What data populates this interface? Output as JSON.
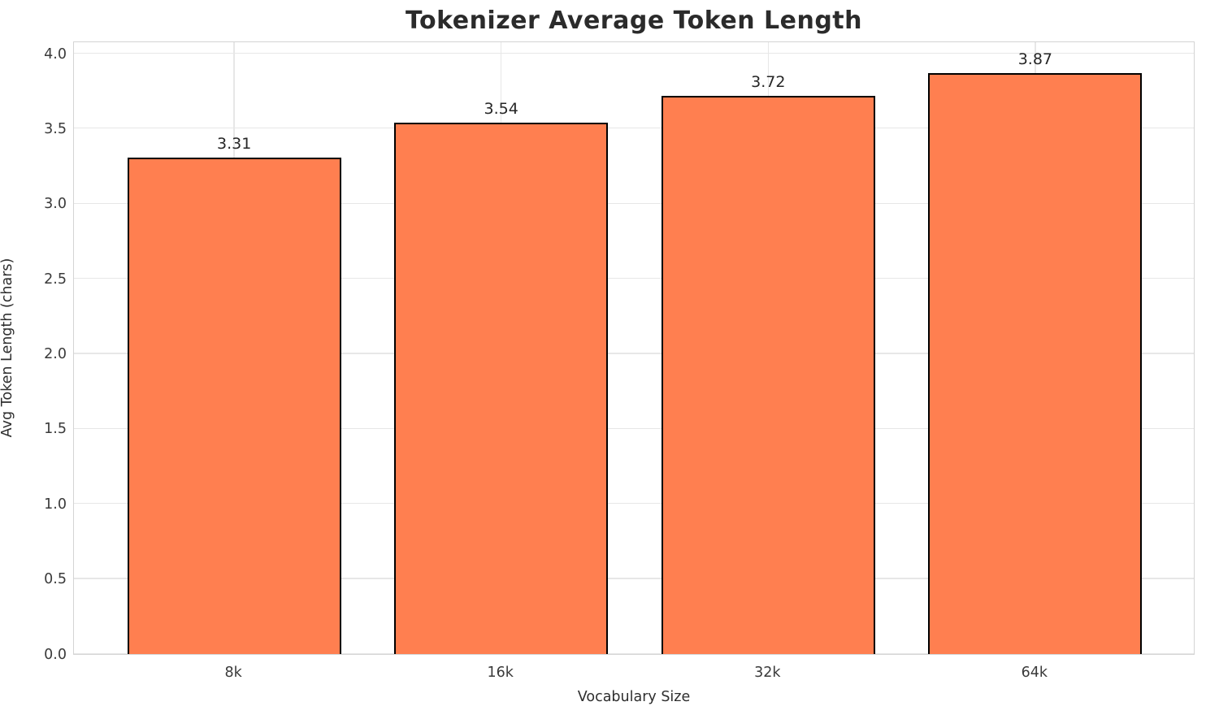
{
  "title": "Tokenizer Average Token Length",
  "chart_data": {
    "type": "bar",
    "categories": [
      "8k",
      "16k",
      "32k",
      "64k"
    ],
    "values": [
      3.31,
      3.54,
      3.72,
      3.87
    ],
    "value_labels": [
      "3.31",
      "3.54",
      "3.72",
      "3.87"
    ],
    "title": "Tokenizer Average Token Length",
    "xlabel": "Vocabulary Size",
    "ylabel": "Avg Token Length (chars)",
    "ylim": [
      0,
      4.087
    ],
    "xlim": [
      -0.6,
      3.6
    ],
    "bar_width": 0.8,
    "yticks": [
      0.0,
      0.5,
      1.0,
      1.5,
      2.0,
      2.5,
      3.0,
      3.5,
      4.0
    ],
    "ytick_labels": [
      "0.0",
      "0.5",
      "1.0",
      "1.5",
      "2.0",
      "2.5",
      "3.0",
      "3.5",
      "4.0"
    ],
    "grid": true,
    "legend": "none",
    "colors": {
      "bar_fill": "#FF7F50",
      "bar_edge": "#000000",
      "grid": "#e7e7e7",
      "spine": "#d4d4d4",
      "text": "#262626",
      "background": "#ffffff"
    }
  }
}
